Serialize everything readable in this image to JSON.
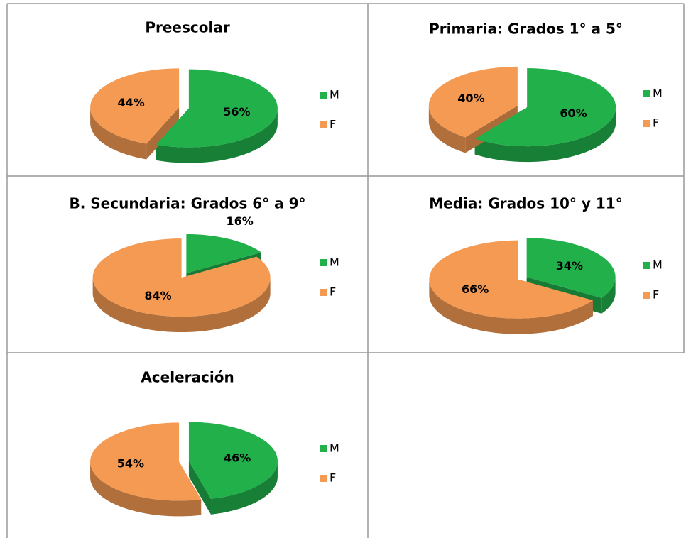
{
  "chart_data": [
    {
      "type": "pie",
      "title": "Preescolar",
      "categories": [
        "M",
        "F"
      ],
      "values": [
        56,
        44
      ],
      "value_labels": [
        "56%",
        "44%"
      ],
      "colors": [
        "#22b04b",
        "#f59a52"
      ]
    },
    {
      "type": "pie",
      "title": "Primaria: Grados  1° a 5°",
      "categories": [
        "M",
        "F"
      ],
      "values": [
        60,
        40
      ],
      "value_labels": [
        "60%",
        "40%"
      ],
      "colors": [
        "#22b04b",
        "#f59a52"
      ]
    },
    {
      "type": "pie",
      "title": "B. Secundaria: Grados 6° a 9°",
      "categories": [
        "M",
        "F"
      ],
      "values": [
        16,
        84
      ],
      "value_labels": [
        "16%",
        "84%"
      ],
      "colors": [
        "#22b04b",
        "#f59a52"
      ]
    },
    {
      "type": "pie",
      "title": "Media: Grados 10° y 11°",
      "categories": [
        "M",
        "F"
      ],
      "values": [
        34,
        66
      ],
      "value_labels": [
        "34%",
        "66%"
      ],
      "colors": [
        "#22b04b",
        "#f59a52"
      ]
    },
    {
      "type": "pie",
      "title": "Aceleración",
      "categories": [
        "M",
        "F"
      ],
      "values": [
        46,
        54
      ],
      "value_labels": [
        "46%",
        "54%"
      ],
      "colors": [
        "#22b04b",
        "#f59a52"
      ]
    }
  ]
}
